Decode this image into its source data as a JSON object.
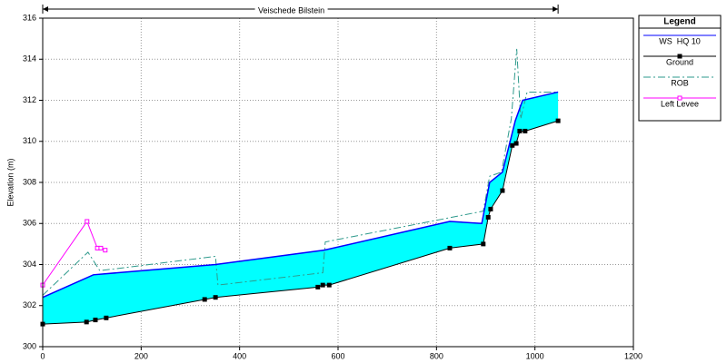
{
  "chart_data": {
    "type": "profile",
    "title": "Veischede Bilstein",
    "y_label": "Elevation (m)",
    "legend_title": "Legend",
    "xlim": [
      0,
      1200
    ],
    "xticks": [
      0,
      200,
      400,
      600,
      800,
      1000,
      1200
    ],
    "ylim": [
      300,
      316
    ],
    "yticks": [
      300,
      302,
      304,
      306,
      308,
      310,
      312,
      314,
      316
    ],
    "grid": true,
    "legend": "right",
    "fill_color": "#00ffff",
    "series": [
      {
        "name": "WS  HQ 10",
        "color": "#0000ff",
        "style": "solid",
        "marker": "none",
        "x": [
          0,
          103,
          351,
          572,
          827,
          892,
          908,
          934,
          960,
          975,
          1047
        ],
        "values": [
          302.4,
          303.5,
          304.0,
          304.7,
          306.1,
          306.0,
          308.0,
          308.5,
          311.0,
          312.0,
          312.4
        ]
      },
      {
        "name": "Ground",
        "color": "#000000",
        "style": "solid",
        "marker": "filled-square",
        "x": [
          0,
          89,
          107,
          129,
          329,
          351,
          559,
          569,
          582,
          827,
          895,
          905,
          910,
          934,
          954,
          962,
          969,
          980,
          1047
        ],
        "values": [
          301.1,
          301.2,
          301.3,
          301.4,
          302.3,
          302.4,
          302.9,
          303.0,
          303.0,
          304.8,
          305.0,
          306.3,
          306.7,
          307.6,
          309.8,
          309.9,
          310.5,
          310.5,
          311.0
        ]
      },
      {
        "name": "ROB",
        "color": "#2e9a8c",
        "style": "dashdot",
        "marker": "none",
        "x": [
          0,
          92,
          116,
          351,
          356,
          569,
          574,
          895,
          908,
          932,
          952,
          963,
          971,
          984,
          1047
        ],
        "values": [
          302.5,
          304.6,
          303.7,
          304.4,
          303.0,
          303.6,
          305.1,
          306.6,
          308.3,
          308.5,
          311.1,
          314.5,
          311.1,
          312.4,
          312.4
        ]
      },
      {
        "name": "Left Levee",
        "color": "#ff00ff",
        "style": "solid",
        "marker": "open-square",
        "x": [
          0,
          90,
          111,
          118,
          127
        ],
        "values": [
          303.0,
          306.1,
          304.8,
          304.8,
          304.7
        ]
      }
    ]
  }
}
